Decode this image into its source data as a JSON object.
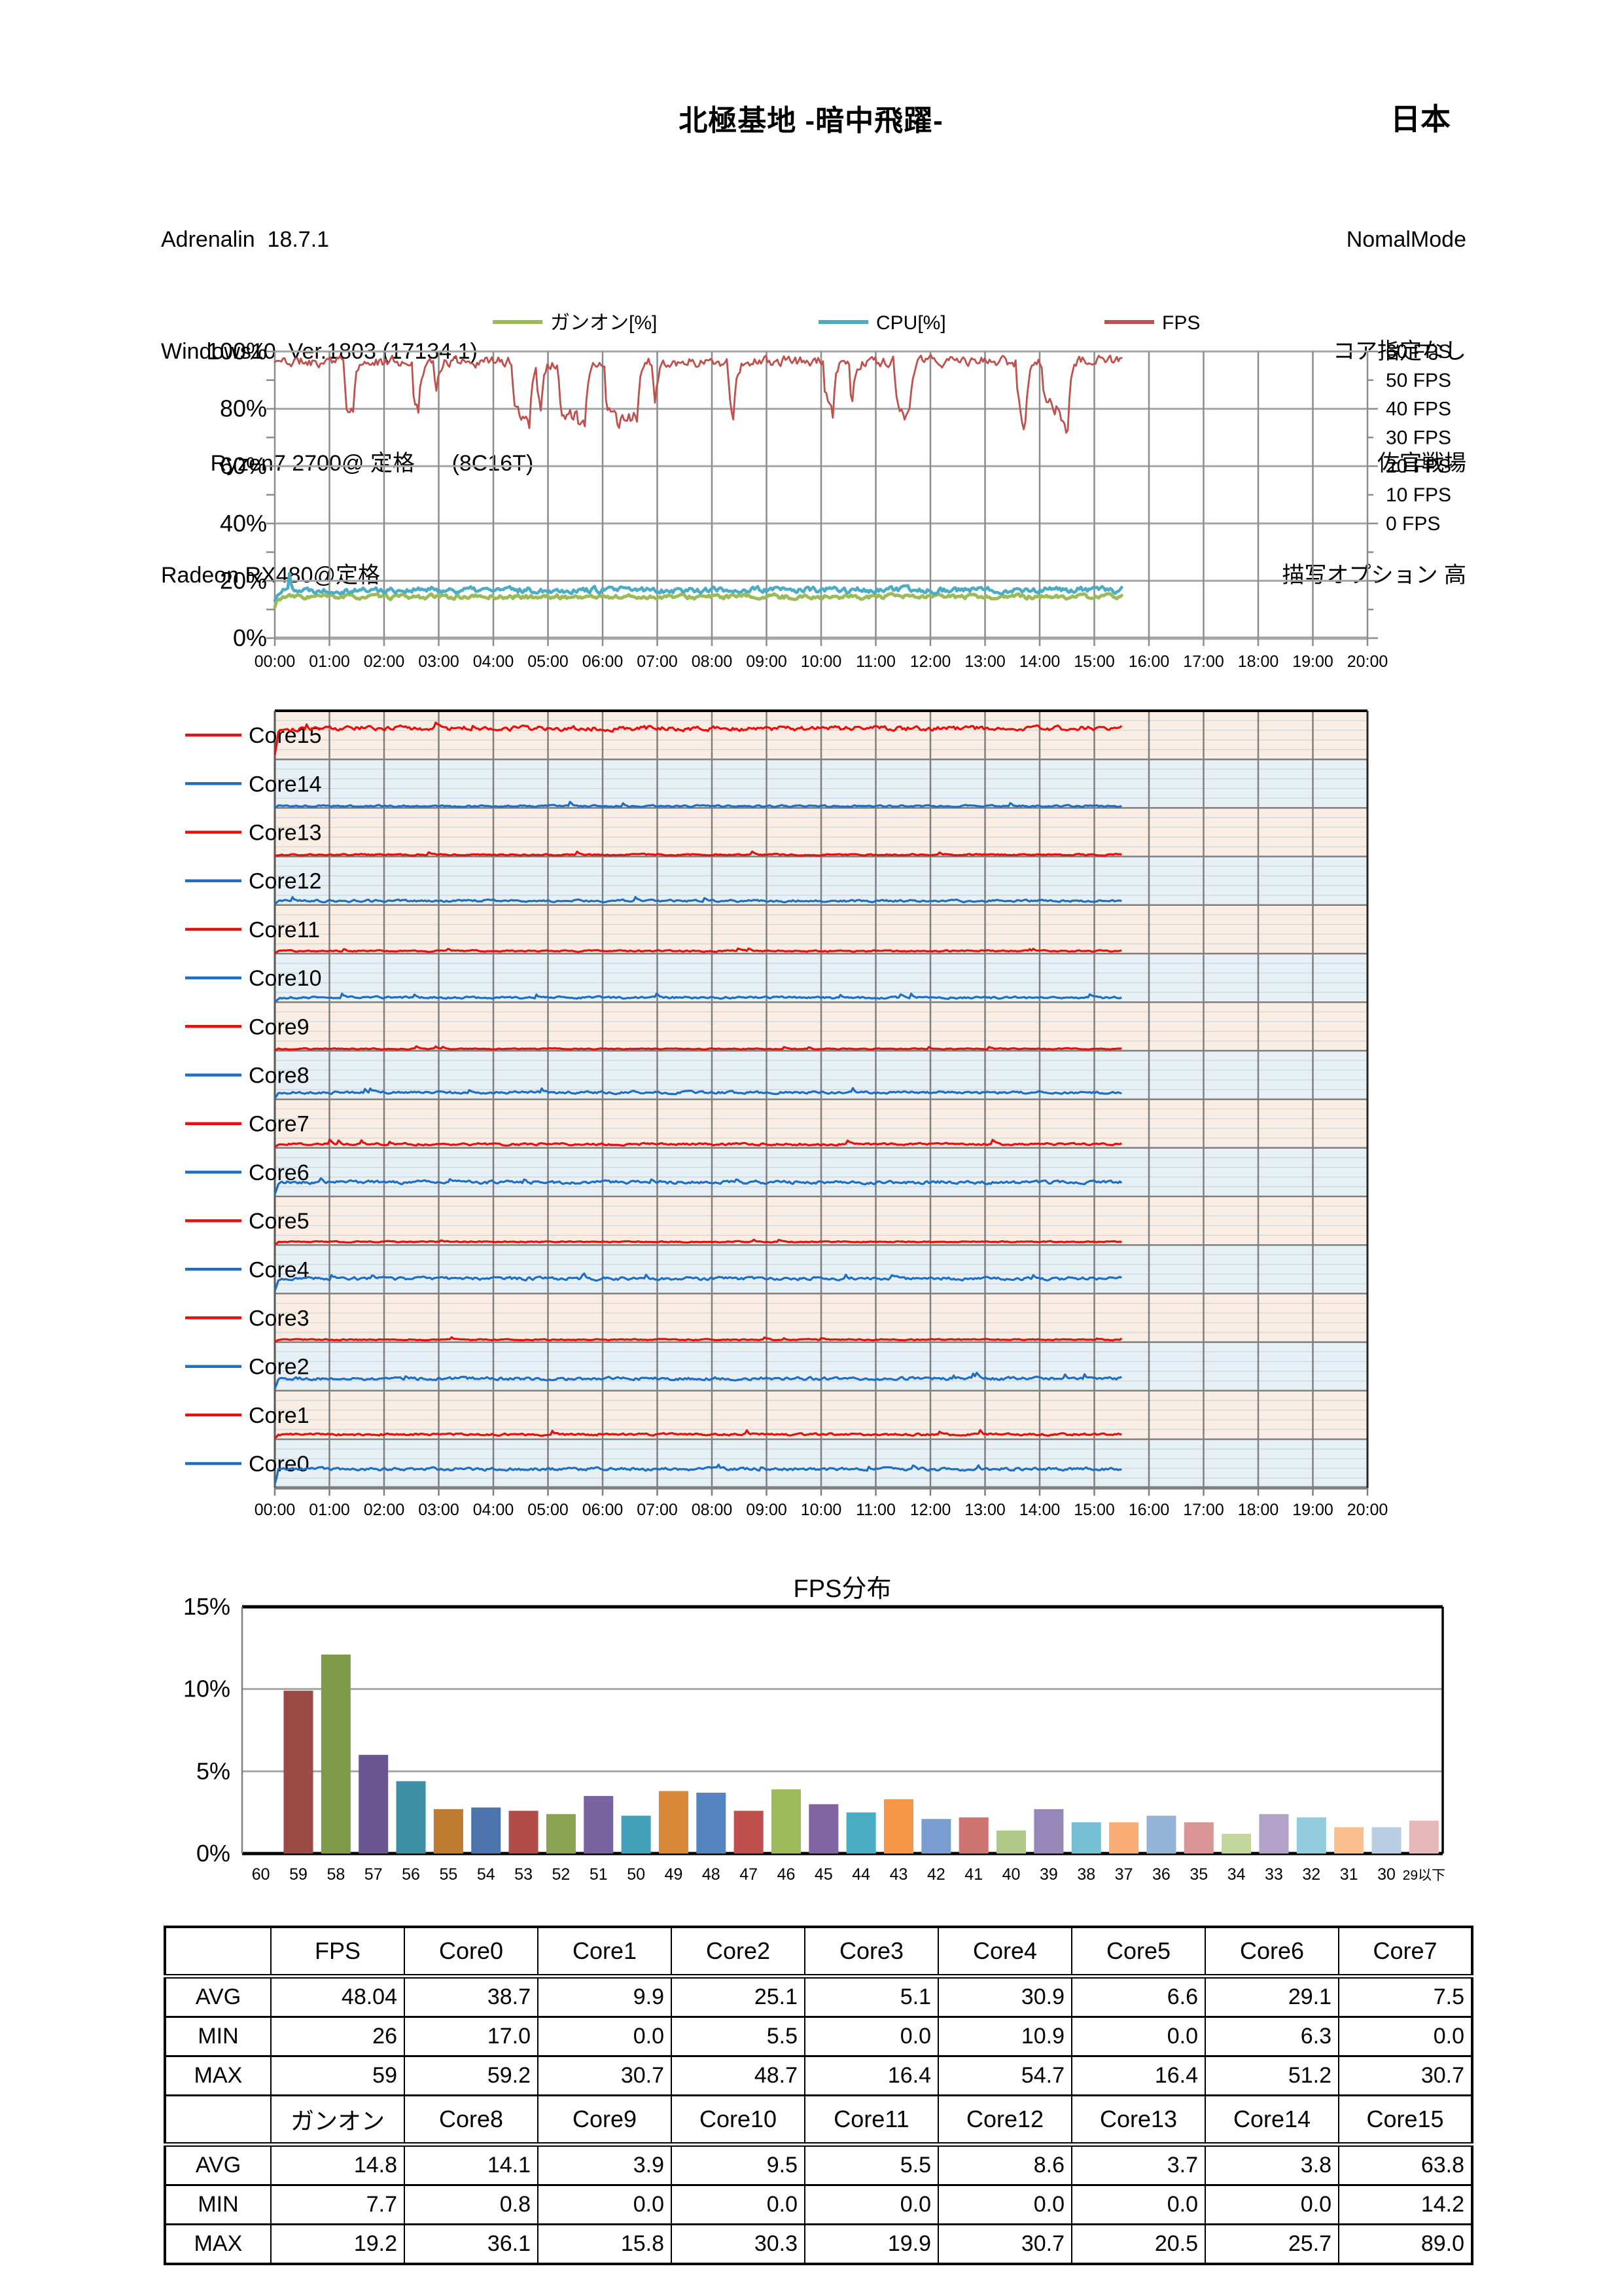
{
  "header": {
    "title": "北極基地 -暗中飛躍-",
    "region": "日本",
    "left_info": [
      "Adrenalin  18.7.1",
      "Windows10  Ver.1803 (17134.1)",
      "        Ryzen7 2700@ 定格      (8C16T)",
      "Radeon RX480@定格"
    ],
    "right_info": [
      "NomalMode",
      "コア指定なし",
      "佐官戦場",
      "描写オプション 高"
    ]
  },
  "chart_data": [
    {
      "type": "line",
      "name": "usage-fps-timeline",
      "legend": [
        {
          "label": "ガンオン[%]",
          "color": "#9BBB59"
        },
        {
          "label": "CPU[%]",
          "color": "#4BACC6"
        },
        {
          "label": "FPS",
          "color": "#C0504D"
        }
      ],
      "y_left": {
        "ticks": [
          "100%",
          "80%",
          "60%",
          "40%",
          "20%",
          "0%"
        ],
        "min": 0,
        "max": 100
      },
      "y_right": {
        "ticks": [
          "60 FPS",
          "50 FPS",
          "40 FPS",
          "30 FPS",
          "20 FPS",
          "10 FPS",
          "0 FPS"
        ],
        "fps_zero_at_percent": 40,
        "fps_max": 60
      },
      "x": {
        "ticks": [
          "00:00",
          "01:00",
          "02:00",
          "03:00",
          "04:00",
          "05:00",
          "06:00",
          "07:00",
          "08:00",
          "09:00",
          "10:00",
          "11:00",
          "12:00",
          "13:00",
          "14:00",
          "15:00",
          "16:00",
          "17:00",
          "18:00",
          "19:00",
          "20:00"
        ]
      },
      "end_time": "15:30",
      "series": [
        {
          "name": "ガンオン[%]",
          "color": "#9BBB59",
          "axis": "left",
          "avg": 14.8,
          "min": 7.7,
          "max": 19.2
        },
        {
          "name": "CPU[%]",
          "color": "#4BACC6",
          "axis": "left",
          "avg": 16.8,
          "min": 9.0,
          "max": 28.0
        },
        {
          "name": "FPS",
          "color": "#C0504D",
          "axis": "right",
          "avg": 48.04,
          "min": 26,
          "max": 59
        }
      ],
      "grid": true,
      "legend_position": "top"
    },
    {
      "type": "line",
      "name": "per-core-usage",
      "x": {
        "ticks": [
          "00:00",
          "01:00",
          "02:00",
          "03:00",
          "04:00",
          "05:00",
          "06:00",
          "07:00",
          "08:00",
          "09:00",
          "10:00",
          "11:00",
          "12:00",
          "13:00",
          "14:00",
          "15:00",
          "16:00",
          "17:00",
          "18:00",
          "19:00",
          "20:00"
        ]
      },
      "end_time": "15:30",
      "band_scale_percent": [
        0,
        100
      ],
      "cores": [
        {
          "name": "Core15",
          "color": "#E90F0F",
          "band": "#FAEEE4",
          "avg": 63.8,
          "min": 14.2,
          "max": 89.0
        },
        {
          "name": "Core14",
          "color": "#1E6FC4",
          "band": "#E7F0F5",
          "avg": 3.8,
          "min": 0.0,
          "max": 25.7
        },
        {
          "name": "Core13",
          "color": "#E90F0F",
          "band": "#FAEEE4",
          "avg": 3.7,
          "min": 0.0,
          "max": 20.5
        },
        {
          "name": "Core12",
          "color": "#1E6FC4",
          "band": "#E7F0F5",
          "avg": 8.6,
          "min": 0.0,
          "max": 30.7
        },
        {
          "name": "Core11",
          "color": "#E90F0F",
          "band": "#FAEEE4",
          "avg": 5.5,
          "min": 0.0,
          "max": 19.9
        },
        {
          "name": "Core10",
          "color": "#1E6FC4",
          "band": "#E7F0F5",
          "avg": 9.5,
          "min": 0.0,
          "max": 30.3
        },
        {
          "name": "Core9",
          "color": "#E90F0F",
          "band": "#FAEEE4",
          "avg": 3.9,
          "min": 0.0,
          "max": 15.8
        },
        {
          "name": "Core8",
          "color": "#1E6FC4",
          "band": "#E7F0F5",
          "avg": 14.1,
          "min": 0.8,
          "max": 36.1
        },
        {
          "name": "Core7",
          "color": "#E90F0F",
          "band": "#FAEEE4",
          "avg": 7.5,
          "min": 0.0,
          "max": 30.7
        },
        {
          "name": "Core6",
          "color": "#1E6FC4",
          "band": "#E7F0F5",
          "avg": 29.1,
          "min": 6.3,
          "max": 51.2
        },
        {
          "name": "Core5",
          "color": "#E90F0F",
          "band": "#FAEEE4",
          "avg": 6.6,
          "min": 0.0,
          "max": 16.4
        },
        {
          "name": "Core4",
          "color": "#1E6FC4",
          "band": "#E7F0F5",
          "avg": 30.9,
          "min": 10.9,
          "max": 54.7
        },
        {
          "name": "Core3",
          "color": "#E90F0F",
          "band": "#FAEEE4",
          "avg": 5.1,
          "min": 0.0,
          "max": 16.4
        },
        {
          "name": "Core2",
          "color": "#1E6FC4",
          "band": "#E7F0F5",
          "avg": 25.1,
          "min": 5.5,
          "max": 48.7
        },
        {
          "name": "Core1",
          "color": "#E90F0F",
          "band": "#FAEEE4",
          "avg": 9.9,
          "min": 0.0,
          "max": 30.7
        },
        {
          "name": "Core0",
          "color": "#1E6FC4",
          "band": "#E7F0F5",
          "avg": 38.7,
          "min": 17.0,
          "max": 59.2
        }
      ]
    },
    {
      "type": "bar",
      "name": "fps-distribution",
      "title": "FPS分布",
      "ylabel": "",
      "xlabel": "",
      "ylim": [
        0,
        15
      ],
      "y_ticks": [
        "15%",
        "10%",
        "5%",
        "0%"
      ],
      "categories": [
        "60",
        "59",
        "58",
        "57",
        "56",
        "55",
        "54",
        "53",
        "52",
        "51",
        "50",
        "49",
        "48",
        "47",
        "46",
        "45",
        "44",
        "43",
        "42",
        "41",
        "40",
        "39",
        "38",
        "37",
        "36",
        "35",
        "34",
        "33",
        "32",
        "31",
        "30",
        "29以下"
      ],
      "values": [
        0,
        9.9,
        12.1,
        6.0,
        4.4,
        2.7,
        2.8,
        2.6,
        2.4,
        3.5,
        2.3,
        3.8,
        3.7,
        2.6,
        3.9,
        3.0,
        2.5,
        3.3,
        2.1,
        2.2,
        1.4,
        2.7,
        1.9,
        1.9,
        2.3,
        1.9,
        1.2,
        2.4,
        2.2,
        1.6,
        1.6,
        2.0
      ],
      "colors": [
        "#4F81BD",
        "#9C4A46",
        "#7E9B49",
        "#695690",
        "#3C8FA5",
        "#C07B32",
        "#4B75AC",
        "#B04D4A",
        "#8CA353",
        "#7963A0",
        "#44A0B8",
        "#D88836",
        "#5585C0",
        "#C0504D",
        "#9BBB59",
        "#8064A2",
        "#4BACC6",
        "#F79646",
        "#7A9DCF",
        "#CD7371",
        "#AFC886",
        "#9787B8",
        "#74BFD3",
        "#F9AC74",
        "#95B3D7",
        "#D99694",
        "#C3D69B",
        "#B3A2C7",
        "#93CDDD",
        "#FAC090",
        "#B9CDE5",
        "#E6B9B8"
      ],
      "grid": true
    }
  ],
  "table": {
    "header1": [
      "",
      "FPS",
      "Core0",
      "Core1",
      "Core2",
      "Core3",
      "Core4",
      "Core5",
      "Core6",
      "Core7"
    ],
    "rows1": [
      [
        "AVG",
        "48.04",
        "38.7",
        "9.9",
        "25.1",
        "5.1",
        "30.9",
        "6.6",
        "29.1",
        "7.5"
      ],
      [
        "MIN",
        "26",
        "17.0",
        "0.0",
        "5.5",
        "0.0",
        "10.9",
        "0.0",
        "6.3",
        "0.0"
      ],
      [
        "MAX",
        "59",
        "59.2",
        "30.7",
        "48.7",
        "16.4",
        "54.7",
        "16.4",
        "51.2",
        "30.7"
      ]
    ],
    "header2": [
      "",
      "ガンオン",
      "Core8",
      "Core9",
      "Core10",
      "Core11",
      "Core12",
      "Core13",
      "Core14",
      "Core15"
    ],
    "rows2": [
      [
        "AVG",
        "14.8",
        "14.1",
        "3.9",
        "9.5",
        "5.5",
        "8.6",
        "3.7",
        "3.8",
        "63.8"
      ],
      [
        "MIN",
        "7.7",
        "0.8",
        "0.0",
        "0.0",
        "0.0",
        "0.0",
        "0.0",
        "0.0",
        "14.2"
      ],
      [
        "MAX",
        "19.2",
        "36.1",
        "15.8",
        "30.3",
        "19.9",
        "30.7",
        "20.5",
        "25.7",
        "89.0"
      ]
    ]
  }
}
